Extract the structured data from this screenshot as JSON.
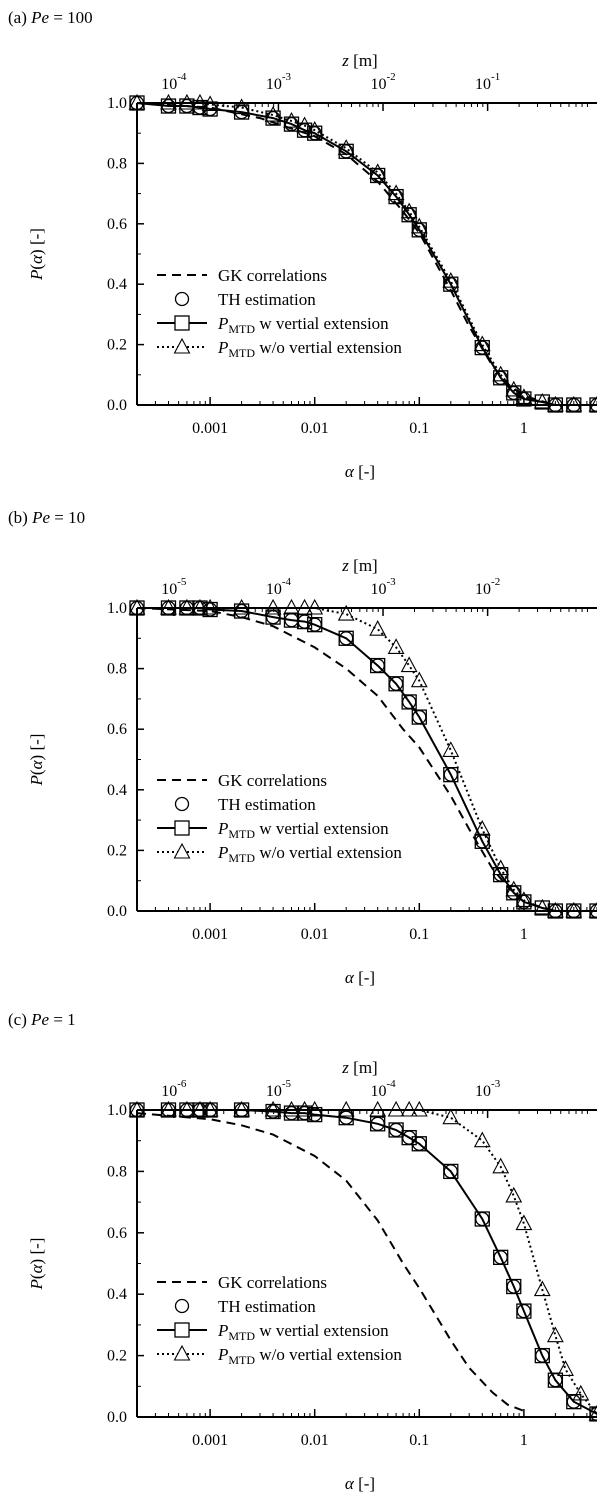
{
  "chart_data": [
    {
      "type": "line",
      "panel_label": "(a) Pe = 100",
      "panel_prefix": "(a)",
      "panel_var": "Pe",
      "panel_value": "= 100",
      "xlabel": "α [-]",
      "ylabel": "P(α) [-]",
      "top_axis_label": "z [m]",
      "x_scale": "log",
      "xlim": [
        0.0002,
        5
      ],
      "ylim": [
        0,
        1
      ],
      "x_ticks": [
        {
          "value": 0.001,
          "label": "0.001"
        },
        {
          "value": 0.01,
          "label": "0.01"
        },
        {
          "value": 0.1,
          "label": "0.1"
        },
        {
          "value": 1,
          "label": "1"
        }
      ],
      "y_ticks": [
        "0.0",
        "0.2",
        "0.4",
        "0.6",
        "0.8",
        "1.0"
      ],
      "top_ticks": [
        {
          "alpha": 0.00045,
          "base": "10",
          "exp": "-4"
        },
        {
          "alpha": 0.0045,
          "base": "10",
          "exp": "-3"
        },
        {
          "alpha": 0.045,
          "base": "10",
          "exp": "-2"
        },
        {
          "alpha": 0.45,
          "base": "10",
          "exp": "-1"
        }
      ],
      "legend": [
        {
          "style": "dashed",
          "marker": "none",
          "label": "GK correlations"
        },
        {
          "style": "none",
          "marker": "circle",
          "label": "TH estimation"
        },
        {
          "style": "solid",
          "marker": "square",
          "label_main": "P",
          "label_sub": "MTD",
          "label_rest": " w vertial extension"
        },
        {
          "style": "dotted",
          "marker": "triangle",
          "label_main": "P",
          "label_sub": "MTD",
          "label_rest": " w/o vertial extension"
        }
      ],
      "legend_position": "lower-left",
      "series": [
        {
          "name": "GK correlations",
          "style": "dashed",
          "marker": "none",
          "x": [
            0.0002,
            0.001,
            0.003,
            0.01,
            0.02,
            0.04,
            0.07,
            0.1,
            0.2,
            0.3,
            0.5,
            0.7,
            1,
            2,
            5
          ],
          "y": [
            1.0,
            0.985,
            0.95,
            0.89,
            0.83,
            0.74,
            0.64,
            0.57,
            0.38,
            0.26,
            0.13,
            0.07,
            0.03,
            0.0,
            0.0
          ]
        },
        {
          "name": "TH estimation",
          "style": "none",
          "marker": "circle",
          "x": [
            0.0002,
            0.0004,
            0.0006,
            0.0008,
            0.001,
            0.002,
            0.004,
            0.006,
            0.008,
            0.01,
            0.02,
            0.04,
            0.06,
            0.08,
            0.1,
            0.2,
            0.4,
            0.6,
            0.8,
            1.0,
            2.0,
            3.0,
            5.0
          ],
          "y": [
            1.0,
            0.99,
            0.99,
            0.985,
            0.98,
            0.97,
            0.95,
            0.93,
            0.91,
            0.9,
            0.84,
            0.76,
            0.69,
            0.63,
            0.58,
            0.4,
            0.19,
            0.09,
            0.04,
            0.02,
            0.0,
            0.0,
            0.0
          ]
        },
        {
          "name": "P_MTD w vertial extension",
          "style": "solid",
          "marker": "square",
          "x": [
            0.0002,
            0.0004,
            0.0006,
            0.0008,
            0.001,
            0.002,
            0.004,
            0.006,
            0.008,
            0.01,
            0.02,
            0.04,
            0.06,
            0.08,
            0.1,
            0.2,
            0.4,
            0.6,
            0.8,
            1.0,
            1.5,
            2.0,
            3.0,
            5.0
          ],
          "y": [
            1.0,
            0.99,
            0.99,
            0.985,
            0.98,
            0.97,
            0.95,
            0.93,
            0.91,
            0.9,
            0.84,
            0.76,
            0.69,
            0.63,
            0.58,
            0.4,
            0.19,
            0.09,
            0.04,
            0.02,
            0.01,
            0.0,
            0.0,
            0.0
          ]
        },
        {
          "name": "P_MTD w/o vertial extension",
          "style": "dotted",
          "marker": "triangle",
          "x": [
            0.0002,
            0.0004,
            0.0006,
            0.0008,
            0.001,
            0.002,
            0.004,
            0.006,
            0.008,
            0.01,
            0.02,
            0.04,
            0.06,
            0.08,
            0.1,
            0.2,
            0.4,
            0.6,
            0.8,
            1.0,
            1.5,
            2.0,
            3.0,
            5.0
          ],
          "y": [
            1.0,
            1.0,
            1.0,
            1.0,
            0.995,
            0.985,
            0.96,
            0.94,
            0.925,
            0.91,
            0.85,
            0.77,
            0.7,
            0.64,
            0.59,
            0.41,
            0.2,
            0.1,
            0.05,
            0.025,
            0.01,
            0.0,
            0.0,
            0.0
          ]
        }
      ]
    },
    {
      "type": "line",
      "panel_label": "(b) Pe = 10",
      "panel_prefix": "(b)",
      "panel_var": "Pe",
      "panel_value": "= 10",
      "xlabel": "α [-]",
      "ylabel": "P(α) [-]",
      "top_axis_label": "z [m]",
      "x_scale": "log",
      "xlim": [
        0.0002,
        5
      ],
      "ylim": [
        0,
        1
      ],
      "x_ticks": [
        {
          "value": 0.001,
          "label": "0.001"
        },
        {
          "value": 0.01,
          "label": "0.01"
        },
        {
          "value": 0.1,
          "label": "0.1"
        },
        {
          "value": 1,
          "label": "1"
        }
      ],
      "y_ticks": [
        "0.0",
        "0.2",
        "0.4",
        "0.6",
        "0.8",
        "1.0"
      ],
      "top_ticks": [
        {
          "alpha": 0.00045,
          "base": "10",
          "exp": "-5"
        },
        {
          "alpha": 0.0045,
          "base": "10",
          "exp": "-4"
        },
        {
          "alpha": 0.045,
          "base": "10",
          "exp": "-3"
        },
        {
          "alpha": 0.45,
          "base": "10",
          "exp": "-2"
        }
      ],
      "legend": [
        {
          "style": "dashed",
          "marker": "none",
          "label": "GK correlations"
        },
        {
          "style": "none",
          "marker": "circle",
          "label": "TH estimation"
        },
        {
          "style": "solid",
          "marker": "square",
          "label_main": "P",
          "label_sub": "MTD",
          "label_rest": " w vertial extension"
        },
        {
          "style": "dotted",
          "marker": "triangle",
          "label_main": "P",
          "label_sub": "MTD",
          "label_rest": " w/o vertial extension"
        }
      ],
      "legend_position": "lower-left",
      "series": [
        {
          "name": "GK correlations",
          "style": "dashed",
          "marker": "none",
          "x": [
            0.0002,
            0.001,
            0.002,
            0.004,
            0.01,
            0.02,
            0.04,
            0.07,
            0.1,
            0.2,
            0.3,
            0.5,
            0.7,
            1,
            2,
            5
          ],
          "y": [
            1.0,
            0.99,
            0.97,
            0.94,
            0.87,
            0.8,
            0.71,
            0.6,
            0.54,
            0.38,
            0.27,
            0.14,
            0.08,
            0.03,
            0.0,
            0.0
          ]
        },
        {
          "name": "TH estimation",
          "style": "none",
          "marker": "circle",
          "x": [
            0.0002,
            0.0004,
            0.0006,
            0.0008,
            0.001,
            0.002,
            0.004,
            0.006,
            0.008,
            0.01,
            0.02,
            0.04,
            0.06,
            0.08,
            0.1,
            0.2,
            0.4,
            0.6,
            0.8,
            1.0,
            2.0,
            3.0,
            5.0
          ],
          "y": [
            1.0,
            1.0,
            1.0,
            1.0,
            0.995,
            0.99,
            0.97,
            0.96,
            0.955,
            0.945,
            0.9,
            0.81,
            0.75,
            0.69,
            0.64,
            0.45,
            0.23,
            0.12,
            0.06,
            0.03,
            0.0,
            0.0,
            0.0
          ]
        },
        {
          "name": "P_MTD w vertial extension",
          "style": "solid",
          "marker": "square",
          "x": [
            0.0002,
            0.0004,
            0.0006,
            0.0008,
            0.001,
            0.002,
            0.004,
            0.006,
            0.008,
            0.01,
            0.02,
            0.04,
            0.06,
            0.08,
            0.1,
            0.2,
            0.4,
            0.6,
            0.8,
            1.0,
            1.5,
            2.0,
            3.0,
            5.0
          ],
          "y": [
            1.0,
            1.0,
            1.0,
            1.0,
            0.995,
            0.99,
            0.97,
            0.96,
            0.955,
            0.945,
            0.9,
            0.81,
            0.75,
            0.69,
            0.64,
            0.45,
            0.23,
            0.12,
            0.06,
            0.03,
            0.01,
            0.0,
            0.0,
            0.0
          ]
        },
        {
          "name": "P_MTD w/o vertial extension",
          "style": "dotted",
          "marker": "triangle",
          "x": [
            0.0002,
            0.0004,
            0.0006,
            0.0008,
            0.001,
            0.002,
            0.004,
            0.006,
            0.008,
            0.01,
            0.02,
            0.04,
            0.06,
            0.08,
            0.1,
            0.2,
            0.4,
            0.6,
            0.8,
            1.0,
            1.5,
            2.0,
            3.0,
            5.0
          ],
          "y": [
            1.0,
            1.0,
            1.0,
            1.0,
            1.0,
            1.0,
            1.0,
            1.0,
            1.0,
            1.0,
            0.98,
            0.93,
            0.87,
            0.81,
            0.76,
            0.53,
            0.27,
            0.14,
            0.07,
            0.035,
            0.01,
            0.0,
            0.0,
            0.0
          ]
        }
      ]
    },
    {
      "type": "line",
      "panel_label": "(c) Pe = 1",
      "panel_prefix": "(c)",
      "panel_var": "Pe",
      "panel_value": "= 1",
      "xlabel": "α [-]",
      "ylabel": "P(α) [-]",
      "top_axis_label": "z [m]",
      "x_scale": "log",
      "xlim": [
        0.0002,
        5
      ],
      "ylim": [
        0,
        1
      ],
      "x_ticks": [
        {
          "value": 0.001,
          "label": "0.001"
        },
        {
          "value": 0.01,
          "label": "0.01"
        },
        {
          "value": 0.1,
          "label": "0.1"
        },
        {
          "value": 1,
          "label": "1"
        }
      ],
      "y_ticks": [
        "0.0",
        "0.2",
        "0.4",
        "0.6",
        "0.8",
        "1.0"
      ],
      "top_ticks": [
        {
          "alpha": 0.00045,
          "base": "10",
          "exp": "-6"
        },
        {
          "alpha": 0.0045,
          "base": "10",
          "exp": "-5"
        },
        {
          "alpha": 0.045,
          "base": "10",
          "exp": "-4"
        },
        {
          "alpha": 0.45,
          "base": "10",
          "exp": "-3"
        }
      ],
      "legend": [
        {
          "style": "dashed",
          "marker": "none",
          "label": "GK correlations"
        },
        {
          "style": "none",
          "marker": "circle",
          "label": "TH estimation"
        },
        {
          "style": "solid",
          "marker": "square",
          "label_main": "P",
          "label_sub": "MTD",
          "label_rest": " w vertial extension"
        },
        {
          "style": "dotted",
          "marker": "triangle",
          "label_main": "P",
          "label_sub": "MTD",
          "label_rest": " w/o vertial extension"
        }
      ],
      "legend_position": "lower-left",
      "series": [
        {
          "name": "GK correlations",
          "style": "dashed",
          "marker": "none",
          "x": [
            0.0002,
            0.001,
            0.002,
            0.004,
            0.01,
            0.02,
            0.04,
            0.07,
            0.1,
            0.2,
            0.3,
            0.5,
            0.7,
            1
          ],
          "y": [
            0.99,
            0.97,
            0.95,
            0.92,
            0.85,
            0.77,
            0.64,
            0.5,
            0.42,
            0.25,
            0.16,
            0.08,
            0.04,
            0.02
          ]
        },
        {
          "name": "TH estimation",
          "style": "none",
          "marker": "circle",
          "x": [
            0.0002,
            0.0004,
            0.0006,
            0.0008,
            0.001,
            0.002,
            0.004,
            0.006,
            0.008,
            0.01,
            0.02,
            0.04,
            0.06,
            0.08,
            0.1,
            0.2,
            0.4,
            0.6,
            0.8,
            1.0,
            1.5,
            2.0,
            3.0,
            5.0
          ],
          "y": [
            1.0,
            1.0,
            1.0,
            1.0,
            1.0,
            1.0,
            0.995,
            0.99,
            0.99,
            0.985,
            0.975,
            0.955,
            0.935,
            0.91,
            0.89,
            0.8,
            0.645,
            0.52,
            0.425,
            0.345,
            0.2,
            0.12,
            0.05,
            0.01
          ]
        },
        {
          "name": "P_MTD w vertial extension",
          "style": "solid",
          "marker": "square",
          "x": [
            0.0002,
            0.0004,
            0.0006,
            0.0008,
            0.001,
            0.002,
            0.004,
            0.006,
            0.008,
            0.01,
            0.02,
            0.04,
            0.06,
            0.08,
            0.1,
            0.2,
            0.4,
            0.6,
            0.8,
            1.0,
            1.5,
            2.0,
            3.0,
            5.0
          ],
          "y": [
            1.0,
            1.0,
            1.0,
            1.0,
            1.0,
            1.0,
            0.995,
            0.99,
            0.99,
            0.985,
            0.975,
            0.955,
            0.935,
            0.91,
            0.89,
            0.8,
            0.645,
            0.52,
            0.425,
            0.345,
            0.2,
            0.12,
            0.05,
            0.01
          ]
        },
        {
          "name": "P_MTD w/o vertial extension",
          "style": "dotted",
          "marker": "triangle",
          "x": [
            0.0002,
            0.0004,
            0.0006,
            0.0008,
            0.001,
            0.002,
            0.004,
            0.006,
            0.008,
            0.01,
            0.02,
            0.04,
            0.06,
            0.08,
            0.1,
            0.2,
            0.4,
            0.6,
            0.8,
            1.0,
            1.5,
            2.0,
            2.5,
            3.5,
            5.0
          ],
          "y": [
            1.0,
            1.0,
            1.0,
            1.0,
            1.0,
            1.0,
            1.0,
            1.0,
            1.0,
            1.0,
            1.0,
            1.0,
            1.0,
            1.0,
            1.0,
            0.975,
            0.9,
            0.815,
            0.72,
            0.63,
            0.415,
            0.265,
            0.155,
            0.075,
            0.01
          ]
        }
      ]
    }
  ]
}
